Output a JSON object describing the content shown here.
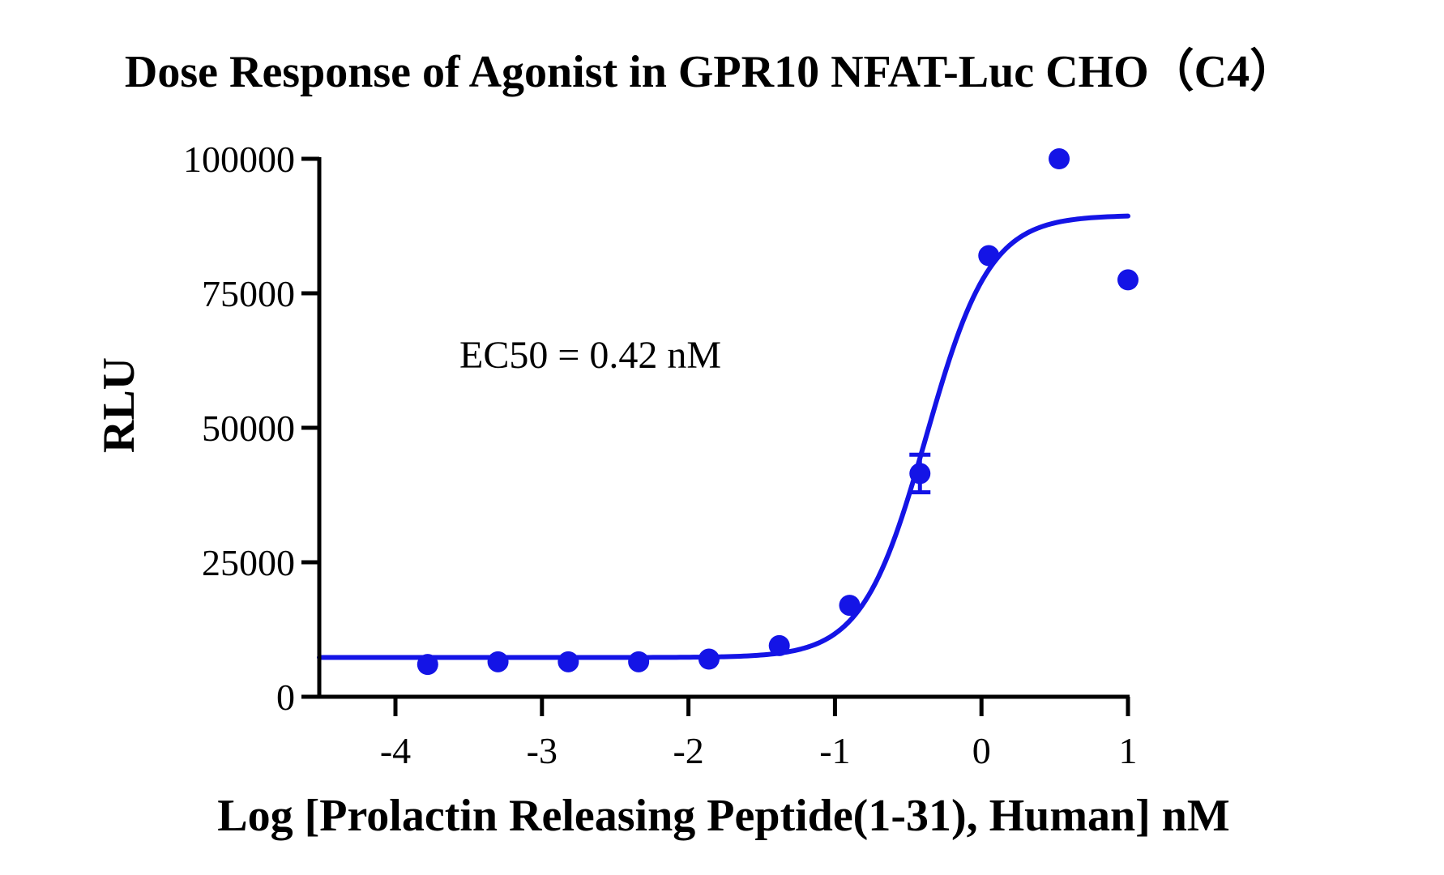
{
  "chart_data": {
    "type": "scatter",
    "title": "Dose Response of Agonist in GPR10 NFAT-Luc CHO（C4）",
    "xlabel": "Log [Prolactin Releasing Peptide(1-31), Human] nM",
    "ylabel": "RLU",
    "xlim": [
      -4.52,
      1.0
    ],
    "ylim": [
      0,
      100000
    ],
    "x_ticks": [
      -4,
      -3,
      -2,
      -1,
      0,
      1
    ],
    "x_tick_labels": [
      "-4",
      "-3",
      "-2",
      "-1",
      "0",
      "1"
    ],
    "y_ticks": [
      0,
      25000,
      50000,
      75000,
      100000
    ],
    "y_tick_labels": [
      "0",
      "25000",
      "50000",
      "75000",
      "100000"
    ],
    "grid": false,
    "annotation": "EC50 = 0.42 nM",
    "color": "#1414e6",
    "series": [
      {
        "points": [
          {
            "x": -3.78,
            "y": 6000
          },
          {
            "x": -3.3,
            "y": 6500
          },
          {
            "x": -2.82,
            "y": 6500
          },
          {
            "x": -2.34,
            "y": 6500
          },
          {
            "x": -1.86,
            "y": 7000
          },
          {
            "x": -1.38,
            "y": 9500
          },
          {
            "x": -0.9,
            "y": 17000
          },
          {
            "x": -0.42,
            "y": 41500,
            "error": 3500
          },
          {
            "x": 0.05,
            "y": 82000
          },
          {
            "x": 0.53,
            "y": 100000
          },
          {
            "x": 1.0,
            "y": 77500
          }
        ],
        "fit": {
          "model": "four-parameter logistic",
          "bottom": 7300,
          "top": 89500,
          "logEC50": -0.377,
          "hillslope": 2.0
        }
      }
    ]
  }
}
